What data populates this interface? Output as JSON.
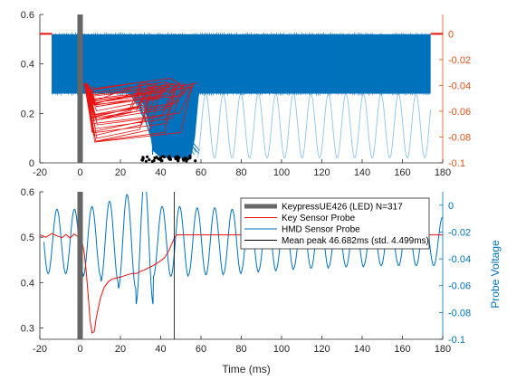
{
  "colors": {
    "key_probe": "#e8110f",
    "hmd_probe": "#0072bd",
    "hmd_light": "#8fc4e6",
    "keypress": "#666666",
    "mean_line": "#000000",
    "left_axis": "#262626",
    "right_axis": "#d95319",
    "right_axis_bottom": "#0072bd"
  },
  "chart_data": [
    {
      "type": "line",
      "panel": "top",
      "xlim": [
        -20,
        180
      ],
      "ylim_left": [
        0,
        0.6
      ],
      "ylim_right": [
        -0.1,
        0.015
      ],
      "x_ticks": [
        -20,
        0,
        20,
        40,
        60,
        80,
        100,
        120,
        140,
        160,
        180
      ],
      "y_ticks_left": [
        0,
        0.2,
        0.4,
        0.6
      ],
      "y_ticks_right": [
        -0.1,
        -0.08,
        -0.06,
        -0.04,
        -0.02,
        0
      ],
      "keypress_bar_x": 0,
      "series": [
        {
          "name": "HMD Sensor Probe (overlaid traces)",
          "axis": "left",
          "band_x": [
            -14,
            174
          ],
          "band_y": [
            0.28,
            0.52
          ],
          "dip_x_range": [
            35,
            60
          ],
          "dip_min": 0.0
        },
        {
          "name": "Key Sensor Probe (overlaid traces)",
          "axis": "right",
          "baseline": 0.0,
          "drop_start_x": 0,
          "drop_end_x": [
            30,
            58
          ],
          "min_value": -0.085
        },
        {
          "name": "Peak markers",
          "axis": "left",
          "x_range": [
            30,
            58
          ],
          "y": 0.005
        },
        {
          "name": "Decaying oscillation (light)",
          "axis": "left",
          "x_start": 58,
          "x_end": 174,
          "period": 8.7,
          "y_top": 0.28,
          "y_bottom": 0.02
        }
      ]
    },
    {
      "type": "line",
      "panel": "bottom",
      "xlim": [
        -20,
        180
      ],
      "ylim_left": [
        0.275,
        0.6
      ],
      "ylim_right": [
        -0.1,
        0.01
      ],
      "x_ticks": [
        -20,
        0,
        20,
        40,
        60,
        80,
        100,
        120,
        140,
        160,
        180
      ],
      "y_ticks_left": [
        0.3,
        0.4,
        0.5,
        0.6
      ],
      "y_ticks_right": [
        -0.1,
        -0.08,
        -0.06,
        -0.04,
        -0.02,
        0
      ],
      "xlabel": "Time (ms)",
      "ylabel_right": "Probe Voltage",
      "mean_peak_x": 46.682,
      "keypress_bar_x": 0,
      "legend": [
        {
          "label": "KeypressUE426 (LED)  N=317",
          "color_key": "keypress",
          "width": 5
        },
        {
          "label": "Key Sensor Probe",
          "color_key": "key_probe",
          "width": 1
        },
        {
          "label": "HMD Sensor Probe",
          "color_key": "hmd_probe",
          "width": 1
        },
        {
          "label": "Mean peak 46.682ms (std. 4.499ms)",
          "color_key": "mean_line",
          "width": 1
        }
      ],
      "series": [
        {
          "name": "Key Sensor Probe",
          "axis": "left",
          "x": [
            -20,
            -17,
            -14,
            -11,
            -9,
            -7,
            -5,
            -3,
            -1,
            0,
            1,
            2,
            3,
            4,
            5,
            6,
            7,
            8,
            10,
            12,
            14,
            16,
            18,
            20,
            22,
            24,
            26,
            28,
            30,
            32,
            34,
            36,
            38,
            40,
            42,
            44,
            46,
            47,
            48,
            50,
            60,
            70,
            80,
            90,
            100,
            110,
            120,
            130,
            140,
            150,
            160,
            170,
            180
          ],
          "y": [
            0.505,
            0.5,
            0.508,
            0.502,
            0.499,
            0.506,
            0.498,
            0.507,
            0.501,
            0.5,
            0.49,
            0.465,
            0.425,
            0.372,
            0.315,
            0.289,
            0.292,
            0.322,
            0.365,
            0.39,
            0.402,
            0.408,
            0.41,
            0.412,
            0.415,
            0.418,
            0.42,
            0.42,
            0.425,
            0.428,
            0.433,
            0.437,
            0.442,
            0.448,
            0.455,
            0.47,
            0.49,
            0.5,
            0.505,
            0.505,
            0.505,
            0.505,
            0.505,
            0.505,
            0.505,
            0.505,
            0.505,
            0.505,
            0.505,
            0.505,
            0.505,
            0.505,
            0.505
          ]
        },
        {
          "name": "HMD Sensor Probe",
          "axis": "right",
          "cycles": [
            {
              "tc": -11.5,
              "amp": 0.024
            },
            {
              "tc": -2.8,
              "amp": 0.024
            },
            {
              "tc": 5.9,
              "amp": 0.026
            },
            {
              "tc": 14.6,
              "amp": 0.03
            },
            {
              "tc": 23.3,
              "amp": 0.035
            },
            {
              "tc": 32.0,
              "amp": 0.047
            },
            {
              "tc": 40.7,
              "amp": 0.026
            },
            {
              "tc": 49.4,
              "amp": 0.026
            },
            {
              "tc": 58.1,
              "amp": 0.025
            },
            {
              "tc": 66.8,
              "amp": 0.025
            },
            {
              "tc": 75.5,
              "amp": 0.024
            },
            {
              "tc": 84.2,
              "amp": 0.023
            },
            {
              "tc": 92.9,
              "amp": 0.022
            },
            {
              "tc": 101.6,
              "amp": 0.021
            },
            {
              "tc": 110.3,
              "amp": 0.02
            },
            {
              "tc": 119.0,
              "amp": 0.02
            },
            {
              "tc": 127.7,
              "amp": 0.019
            },
            {
              "tc": 136.4,
              "amp": 0.019
            },
            {
              "tc": 145.1,
              "amp": 0.018
            },
            {
              "tc": 153.8,
              "amp": 0.018
            },
            {
              "tc": 162.5,
              "amp": 0.018
            },
            {
              "tc": 171.2,
              "amp": 0.018
            }
          ],
          "center": -0.027,
          "period": 8.7,
          "x_range": [
            -18,
            180
          ]
        }
      ]
    }
  ]
}
